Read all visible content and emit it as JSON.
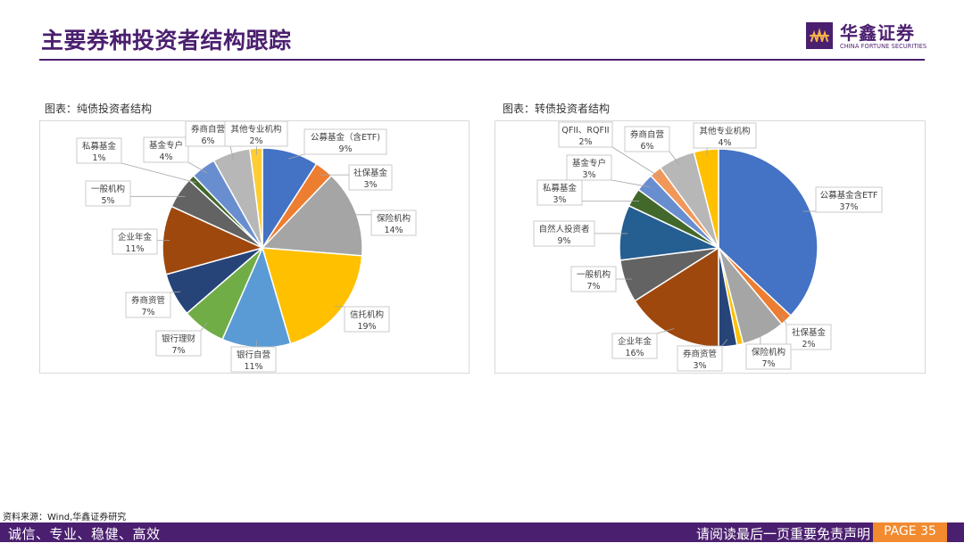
{
  "header": {
    "title": "主要券种投资者结构跟踪"
  },
  "logo": {
    "name_cn": "华鑫证券",
    "name_en": "CHINA FORTUNE SECURITIES",
    "brand_color": "#4b1f6f"
  },
  "footer": {
    "slogan": "诚信、专业、稳健、高效",
    "disclaimer": "请阅读最后一页重要免责声明",
    "page": "PAGE 35",
    "accent_color": "#f28a2f"
  },
  "source_note": "资料来源：Wind,华鑫证券研究",
  "chart_data": [
    {
      "type": "pie",
      "title": "图表：纯债投资者结构",
      "categories": [
        "公募基金（含ETF)",
        "社保基金",
        "保险机构",
        "信托机构",
        "银行自营",
        "银行理财",
        "券商资管",
        "企业年金",
        "一般机构",
        "私募基金",
        "基金专户",
        "券商自营",
        "其他专业机构"
      ],
      "values": [
        9,
        3,
        14,
        19,
        11,
        7,
        7,
        11,
        5,
        1,
        4,
        6,
        2
      ],
      "labels": [
        "9%",
        "3%",
        "14%",
        "19%",
        "11%",
        "7%",
        "7%",
        "11%",
        "5%",
        "1%",
        "4%",
        "6%",
        "2%"
      ],
      "colors": [
        "#4472c4",
        "#ed7d31",
        "#a5a5a5",
        "#ffc000",
        "#5b9bd5",
        "#70ad47",
        "#264478",
        "#9e480e",
        "#636363",
        "#43682b",
        "#698ed0",
        "#b7b7b7",
        "#ffcd33"
      ]
    },
    {
      "type": "pie",
      "title": "图表：转债投资者结构",
      "categories": [
        "公募基金含ETF",
        "社保基金",
        "保险机构",
        "券商自营",
        "券商资管",
        "企业年金",
        "一般机构",
        "自然人投资者",
        "私募基金",
        "基金专户",
        "QFII、RQFII",
        "券商自营",
        "其他专业机构"
      ],
      "values": [
        37,
        2,
        7,
        1,
        3,
        16,
        7,
        9,
        3,
        3,
        2,
        6,
        4
      ],
      "labels": [
        "37%",
        "2%",
        "7%",
        "",
        "3%",
        "16%",
        "7%",
        "9%",
        "3%",
        "3%",
        "2%",
        "6%",
        "4%"
      ],
      "colors": [
        "#4472c4",
        "#ed7d31",
        "#a5a5a5",
        "#ffc000",
        "#264478",
        "#9e480e",
        "#636363",
        "#255e91",
        "#43682b",
        "#698ed0",
        "#f1975a",
        "#b7b7b7",
        "#ffc000"
      ]
    }
  ]
}
